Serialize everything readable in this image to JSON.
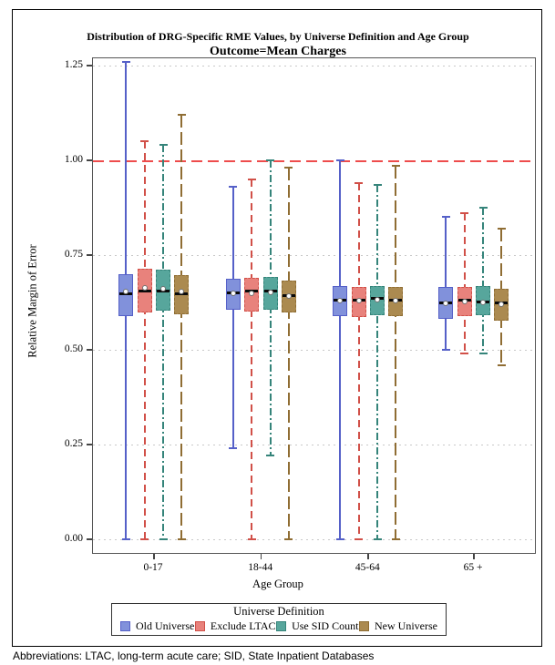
{
  "figure": {
    "footnote": "Abbreviations: LTAC, long-term acute care; SID, State Inpatient Databases"
  },
  "chart_data": {
    "type": "grouped_boxplot",
    "title": "Distribution of DRG-Specific RME Values, by Universe Definition and Age Group",
    "subtitle": "Outcome=Mean Charges",
    "xlabel": "Age Group",
    "ylabel": "Relative Margin of Error",
    "categories": [
      "0-17",
      "18-44",
      "45-64",
      "65 +"
    ],
    "y_ticks": [
      0.0,
      0.25,
      0.5,
      0.75,
      1.0,
      1.25
    ],
    "y_tick_labels": [
      "0.00",
      "0.25",
      "0.50",
      "0.75",
      "1.00",
      "1.25"
    ],
    "ylim": [
      -0.04,
      1.27
    ],
    "grid": "dotted-horizontal",
    "reference_line": {
      "y": 1.0,
      "color": "#ee4c4c",
      "style": "dashed"
    },
    "legend_title": "Universe Definition",
    "legend_position": "bottom",
    "colors": {
      "gridline": "#c9c9c9",
      "frame": "#565656",
      "median": "#0a0a0a",
      "mean_marker": "#ffffff"
    },
    "series": [
      {
        "name": "Old Universe",
        "fill": "#8191DB",
        "stroke": "#5560C8",
        "line_style": "solid",
        "boxes": [
          {
            "category": "0-17",
            "whisker_low": 0.0,
            "q1": 0.59,
            "median": 0.647,
            "mean": 0.655,
            "q3": 0.7,
            "whisker_high": 1.26
          },
          {
            "category": "18-44",
            "whisker_low": 0.24,
            "q1": 0.605,
            "median": 0.651,
            "mean": 0.649,
            "q3": 0.688,
            "whisker_high": 0.93
          },
          {
            "category": "45-64",
            "whisker_low": 0.0,
            "q1": 0.589,
            "median": 0.632,
            "mean": 0.631,
            "q3": 0.668,
            "whisker_high": 1.0
          },
          {
            "category": "65 +",
            "whisker_low": 0.5,
            "q1": 0.582,
            "median": 0.625,
            "mean": 0.623,
            "q3": 0.666,
            "whisker_high": 0.85
          }
        ]
      },
      {
        "name": "Exclude LTAC",
        "fill": "#E8827C",
        "stroke": "#D15048",
        "line_style": "dashed",
        "boxes": [
          {
            "category": "0-17",
            "whisker_low": 0.0,
            "q1": 0.599,
            "median": 0.656,
            "mean": 0.663,
            "q3": 0.714,
            "whisker_high": 1.05
          },
          {
            "category": "18-44",
            "whisker_low": 0.0,
            "q1": 0.601,
            "median": 0.655,
            "mean": 0.648,
            "q3": 0.69,
            "whisker_high": 0.95
          },
          {
            "category": "45-64",
            "whisker_low": 0.0,
            "q1": 0.587,
            "median": 0.632,
            "mean": 0.63,
            "q3": 0.666,
            "whisker_high": 0.94
          },
          {
            "category": "65 +",
            "whisker_low": 0.49,
            "q1": 0.589,
            "median": 0.63,
            "mean": 0.628,
            "q3": 0.666,
            "whisker_high": 0.86
          }
        ]
      },
      {
        "name": "Use SID Count",
        "fill": "#57A69C",
        "stroke": "#35847A",
        "line_style": "dash-dot",
        "boxes": [
          {
            "category": "0-17",
            "whisker_low": 0.0,
            "q1": 0.603,
            "median": 0.656,
            "mean": 0.662,
            "q3": 0.712,
            "whisker_high": 1.04
          },
          {
            "category": "18-44",
            "whisker_low": 0.22,
            "q1": 0.606,
            "median": 0.654,
            "mean": 0.651,
            "q3": 0.692,
            "whisker_high": 1.0
          },
          {
            "category": "45-64",
            "whisker_low": 0.0,
            "q1": 0.591,
            "median": 0.635,
            "mean": 0.633,
            "q3": 0.668,
            "whisker_high": 0.935
          },
          {
            "category": "65 +",
            "whisker_low": 0.49,
            "q1": 0.591,
            "median": 0.627,
            "mean": 0.626,
            "q3": 0.668,
            "whisker_high": 0.875
          }
        ]
      },
      {
        "name": "New Universe",
        "fill": "#AB8A50",
        "stroke": "#8F6D33",
        "line_style": "long-dash",
        "boxes": [
          {
            "category": "0-17",
            "whisker_low": 0.0,
            "q1": 0.594,
            "median": 0.647,
            "mean": 0.654,
            "q3": 0.697,
            "whisker_high": 1.12
          },
          {
            "category": "18-44",
            "whisker_low": 0.0,
            "q1": 0.599,
            "median": 0.644,
            "mean": 0.641,
            "q3": 0.683,
            "whisker_high": 0.98
          },
          {
            "category": "45-64",
            "whisker_low": 0.0,
            "q1": 0.589,
            "median": 0.632,
            "mean": 0.629,
            "q3": 0.666,
            "whisker_high": 0.985
          },
          {
            "category": "65 +",
            "whisker_low": 0.46,
            "q1": 0.577,
            "median": 0.623,
            "mean": 0.62,
            "q3": 0.661,
            "whisker_high": 0.82
          }
        ]
      }
    ]
  }
}
